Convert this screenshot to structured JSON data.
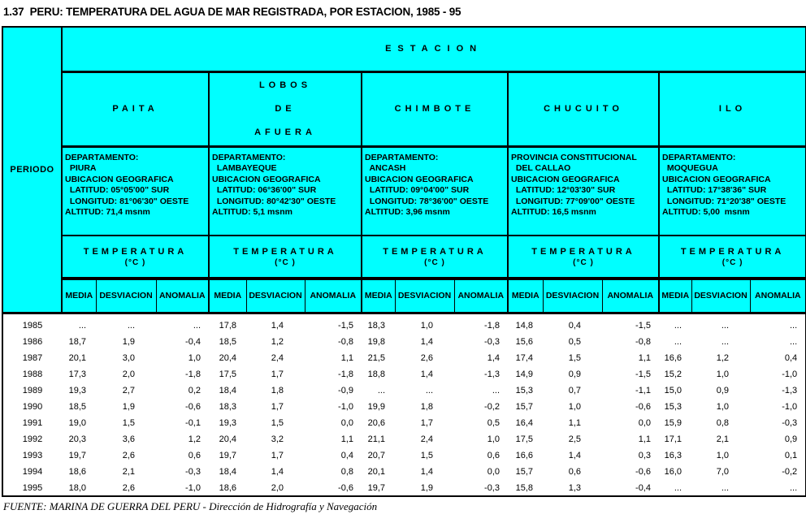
{
  "title": "1.37  PERU: TEMPERATURA DEL AGUA DE MAR REGISTRADA, POR ESTACION, 1985 - 95",
  "colors": {
    "header_bg": "#00FFFF",
    "border": "#000000",
    "text": "#000000",
    "data_bg": "#FFFFFF"
  },
  "table": {
    "period_label": "PERIODO",
    "estacion_label": "ESTACION",
    "temp_label": "TEMPERATURA",
    "temp_unit": "(°C )",
    "subcols": [
      "MEDIA",
      "DESVIACION",
      "ANOMALIA"
    ],
    "stations": [
      {
        "name": "PAITA",
        "info": [
          "DEPARTAMENTO:",
          "  PIURA",
          "UBICACION GEOGRAFICA",
          "  LATITUD: 05°05'00\" SUR",
          "  LONGITUD: 81°06'30\" OESTE",
          "ALTITUD: 71,4 msnm"
        ]
      },
      {
        "name": "LOBOS\nDE\nAFUERA",
        "info": [
          "DEPARTAMENTO:",
          "  LAMBAYEQUE",
          "UBICACION GEOGRAFICA",
          "  LATITUD: 06°36'00\" SUR",
          "  LONGITUD: 80°42'30\" OESTE",
          "ALTITUD: 5,1 msnm"
        ]
      },
      {
        "name": "CHIMBOTE",
        "info": [
          "DEPARTAMENTO:",
          "  ANCASH",
          "UBICACION GEOGRAFICA",
          "  LATITUD: 09°04'00\" SUR",
          "  LONGITUD: 78°36'00\" OESTE",
          "ALTITUD: 3,96 msnm"
        ]
      },
      {
        "name": "CHUCUITO",
        "info": [
          "PROVINCIA CONSTITUCIONAL",
          "  DEL CALLAO",
          "UBICACION GEOGRAFICA",
          "  LATITUD: 12°03'30\" SUR",
          "  LONGITUD: 77°09'00\" OESTE",
          "ALTITUD: 16,5 msnm"
        ]
      },
      {
        "name": "ILO",
        "info": [
          "DEPARTAMENTO:",
          "  MOQUEGUA",
          "UBICACION GEOGRAFICA",
          "  LATITUD: 17°38'36\" SUR",
          "  LONGITUD: 71°20'38\" OESTE",
          "ALTITUD: 5,00  msnm"
        ]
      }
    ]
  },
  "rows": [
    {
      "year": "1985",
      "values": [
        "...",
        "...",
        "...",
        "17,8",
        "1,4",
        "-1,5",
        "18,3",
        "1,0",
        "-1,8",
        "14,8",
        "0,4",
        "-1,5",
        "...",
        "...",
        "..."
      ]
    },
    {
      "year": "1986",
      "values": [
        "18,7",
        "1,9",
        "-0,4",
        "18,5",
        "1,2",
        "-0,8",
        "19,8",
        "1,4",
        "-0,3",
        "15,6",
        "0,5",
        "-0,8",
        "...",
        "...",
        "..."
      ]
    },
    {
      "year": "1987",
      "values": [
        "20,1",
        "3,0",
        "1,0",
        "20,4",
        "2,4",
        "1,1",
        "21,5",
        "2,6",
        "1,4",
        "17,4",
        "1,5",
        "1,1",
        "16,6",
        "1,2",
        "0,4"
      ]
    },
    {
      "year": "1988",
      "values": [
        "17,3",
        "2,0",
        "-1,8",
        "17,5",
        "1,7",
        "-1,8",
        "18,8",
        "1,4",
        "-1,3",
        "14,9",
        "0,9",
        "-1,5",
        "15,2",
        "1,0",
        "-1,0"
      ]
    },
    {
      "year": "1989",
      "values": [
        "19,3",
        "2,7",
        "0,2",
        "18,4",
        "1,8",
        "-0,9",
        "...",
        "...",
        "...",
        "15,3",
        "0,7",
        "-1,1",
        "15,0",
        "0,9",
        "-1,3"
      ]
    },
    {
      "year": "1990",
      "values": [
        "18,5",
        "1,9",
        "-0,6",
        "18,3",
        "1,7",
        "-1,0",
        "19,9",
        "1,8",
        "-0,2",
        "15,7",
        "1,0",
        "-0,6",
        "15,3",
        "1,0",
        "-1,0"
      ]
    },
    {
      "year": "1991",
      "values": [
        "19,0",
        "1,5",
        "-0,1",
        "19,3",
        "1,5",
        "0,0",
        "20,6",
        "1,7",
        "0,5",
        "16,4",
        "1,1",
        "0,0",
        "15,9",
        "0,8",
        "-0,3"
      ]
    },
    {
      "year": "1992",
      "values": [
        "20,3",
        "3,6",
        "1,2",
        "20,4",
        "3,2",
        "1,1",
        "21,1",
        "2,4",
        "1,0",
        "17,5",
        "2,5",
        "1,1",
        "17,1",
        "2,1",
        "0,9"
      ]
    },
    {
      "year": "1993",
      "values": [
        "19,7",
        "2,6",
        "0,6",
        "19,7",
        "1,7",
        "0,4",
        "20,7",
        "1,5",
        "0,6",
        "16,6",
        "1,4",
        "0,3",
        "16,3",
        "1,0",
        "0,1"
      ]
    },
    {
      "year": "1994",
      "values": [
        "18,6",
        "2,1",
        "-0,3",
        "18,4",
        "1,4",
        "0,8",
        "20,1",
        "1,4",
        "0,0",
        "15,7",
        "0,6",
        "-0,6",
        "16,0",
        "7,0",
        "-0,2"
      ]
    },
    {
      "year": "1995",
      "values": [
        "18,0",
        "2,6",
        "-1,0",
        "18,6",
        "2,0",
        "-0,6",
        "19,7",
        "1,9",
        "-0,3",
        "15,8",
        "1,3",
        "-0,4",
        "...",
        "...",
        "..."
      ]
    }
  ],
  "footer": "FUENTE: MARINA DE GUERRA DEL PERU - Dirección de Hidrografía y Navegación"
}
